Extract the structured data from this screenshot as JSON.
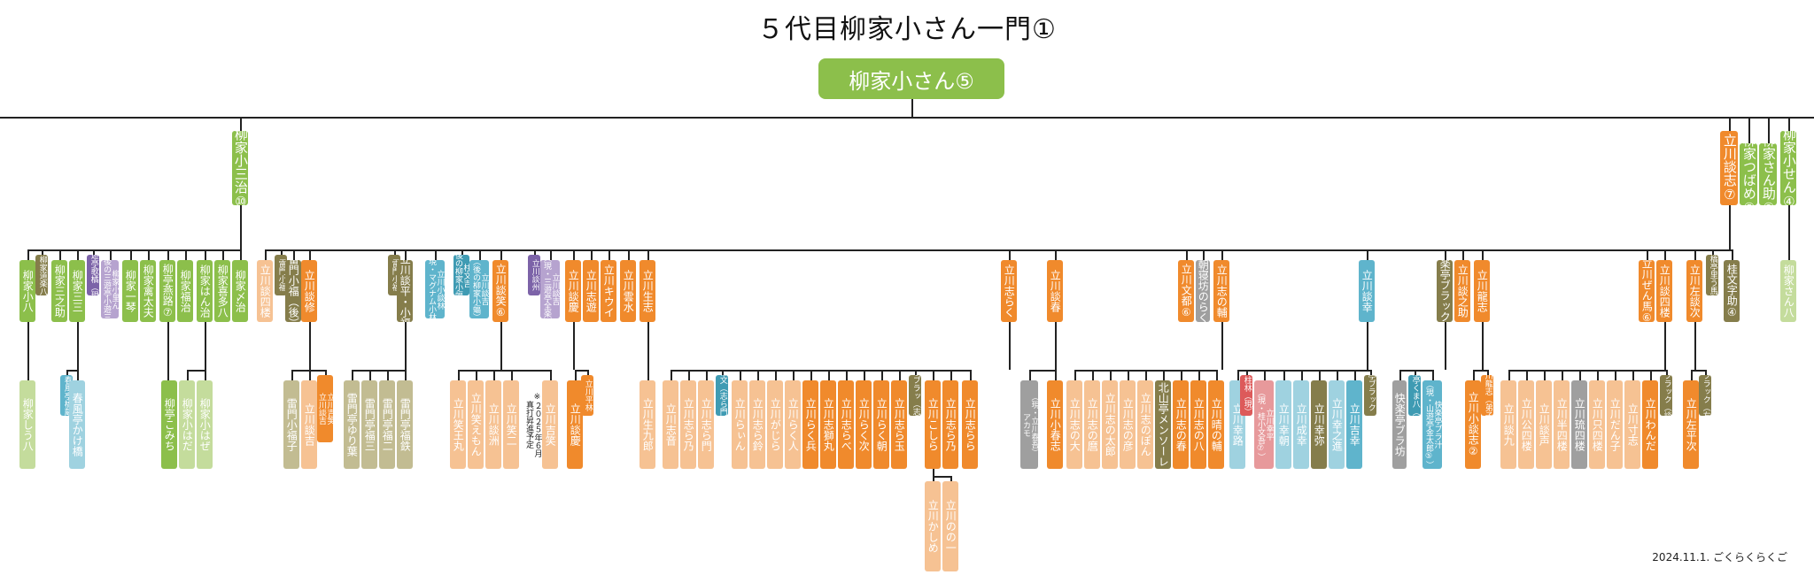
{
  "title": "５代目柳家小さん一門①",
  "footer": "2024.11.1. ごくらくらくご",
  "colors": {
    "green": "#8cbf4b",
    "lightgreen": "#c4dc9c",
    "olive": "#857d4b",
    "khaki": "#c2bc92",
    "purple": "#7c63a8",
    "lavender": "#b6a3cf",
    "teal": "#3f9bb3",
    "skyblue": "#5fb4cc",
    "paleblue": "#9fd2e0",
    "orange": "#f08a2c",
    "peach": "#f6c293",
    "gray": "#9f9f9f",
    "red": "#dd5a5a",
    "pink": "#e7999b",
    "line": "#222222"
  },
  "root": {
    "name": "柳家小さん⑤",
    "color": "green"
  },
  "nodes": [
    {
      "id": "kosanji",
      "name": "柳家小三治⑩",
      "color": "green"
    },
    {
      "id": "danshi",
      "name": "立川談志⑦",
      "color": "orange"
    },
    {
      "id": "tsubame",
      "name": "柳家つばめ⑤",
      "color": "green"
    },
    {
      "id": "sansuke",
      "name": "柳家さん助②",
      "color": "green"
    },
    {
      "id": "sansen",
      "name": "柳家小せん④",
      "color": "green"
    },
    {
      "id": "sanpachi",
      "name": "柳家さん八",
      "color": "lightgreen"
    },
    {
      "id": "tsub_c1",
      "name": "柳家小八",
      "color": "green"
    },
    {
      "id": "tsub_c2",
      "name": "柳家道楽八",
      "color": "olive"
    },
    {
      "id": "tsub_c3",
      "name": "柳家三之助",
      "color": "green"
    },
    {
      "id": "tsub_c4",
      "name": "柳家三三",
      "color": "green"
    },
    {
      "id": "tsub_c5",
      "name": "三遊亭歌橘（現）",
      "color": "purple"
    },
    {
      "id": "tsub_c6",
      "name": "柳家小里ん\n（後の三遊亭小遊三）",
      "color": "lavender"
    },
    {
      "id": "tsub_c7",
      "name": "柳家一琴",
      "color": "green"
    },
    {
      "id": "tsub_c8",
      "name": "柳家禽太夫",
      "color": "green"
    },
    {
      "id": "tsub_c9",
      "name": "柳亭燕路⑦",
      "color": "green"
    },
    {
      "id": "tsub_c10",
      "name": "柳家福治",
      "color": "green"
    },
    {
      "id": "tsub_c11",
      "name": "柳家はん治",
      "color": "green"
    },
    {
      "id": "tsub_c12",
      "name": "柳家喜多八",
      "color": "green"
    },
    {
      "id": "tsub_c13",
      "name": "柳家〆治",
      "color": "green"
    },
    {
      "id": "tsub_g1",
      "name": "柳家しう八",
      "color": "lightgreen"
    },
    {
      "id": "tsub_g2",
      "name": "春風亭橋蔵",
      "color": "skyblue"
    },
    {
      "id": "tsub_g3",
      "name": "春風亭かけ橋",
      "color": "paleblue"
    },
    {
      "id": "tsub_g4",
      "name": "柳亭こみち",
      "color": "green"
    },
    {
      "id": "tsub_g5",
      "name": "柳家小はだ",
      "color": "lightgreen"
    },
    {
      "id": "tsub_g6",
      "name": "柳家小はぜ",
      "color": "lightgreen"
    },
    {
      "id": "d1",
      "name": "立川談四楼",
      "color": "peach"
    },
    {
      "id": "d2",
      "name": "雷門小福",
      "color": "olive"
    },
    {
      "id": "d3",
      "name": "雷門小福（後）",
      "color": "olive"
    },
    {
      "id": "d4",
      "name": "立川談修",
      "color": "orange"
    },
    {
      "id": "d5",
      "name": "雷門小福",
      "color": "olive"
    },
    {
      "id": "d6",
      "name": "立川談平・小福",
      "color": "olive"
    },
    {
      "id": "d7",
      "name": "立川小談林\n（現・マグナム小林）",
      "color": "skyblue"
    },
    {
      "id": "d8",
      "name": "柱文吉\n（後の柳家小蝠）",
      "color": "teal"
    },
    {
      "id": "d9",
      "name": "立川談吉\n（後の柳家小蝠）",
      "color": "skyblue"
    },
    {
      "id": "d10",
      "name": "立川談笑⑥",
      "color": "orange"
    },
    {
      "id": "d11",
      "name": "立川談州",
      "color": "purple"
    },
    {
      "id": "d12",
      "name": "立川談吉\n（現・三遊亭全楽）",
      "color": "lavender"
    },
    {
      "id": "d13",
      "name": "立川談慶",
      "color": "orange"
    },
    {
      "id": "d14",
      "name": "立川志遊",
      "color": "orange"
    },
    {
      "id": "d15",
      "name": "立川キウイ",
      "color": "orange"
    },
    {
      "id": "d16",
      "name": "立川雲水",
      "color": "orange"
    },
    {
      "id": "d17",
      "name": "立川生志",
      "color": "orange"
    },
    {
      "id": "d18",
      "name": "立川志らく",
      "color": "orange"
    },
    {
      "id": "d19",
      "name": "立川談春",
      "color": "orange"
    },
    {
      "id": "d20",
      "name": "立川文都⑥",
      "color": "orange"
    },
    {
      "id": "d21",
      "name": "朝寝坊のらく",
      "color": "gray"
    },
    {
      "id": "d22",
      "name": "立川志の輔",
      "color": "orange"
    },
    {
      "id": "d23",
      "name": "立川談幸",
      "color": "skyblue"
    },
    {
      "id": "d24",
      "name": "快楽亭ブラック②",
      "color": "olive"
    },
    {
      "id": "d25",
      "name": "立川談之助",
      "color": "orange"
    },
    {
      "id": "d26",
      "name": "立川龍志",
      "color": "orange"
    },
    {
      "id": "d27",
      "name": "立川ぜん馬⑥",
      "color": "orange"
    },
    {
      "id": "d28",
      "name": "立川談四楼",
      "color": "orange"
    },
    {
      "id": "d29",
      "name": "立川左談次",
      "color": "orange"
    },
    {
      "id": "d30",
      "name": "土橋亭里う馬⑩",
      "color": "olive"
    },
    {
      "id": "d31",
      "name": "桂文字助④",
      "color": "olive"
    },
    {
      "id": "g_a1",
      "name": "雷門小福子",
      "color": "khaki"
    },
    {
      "id": "g_a2",
      "name": "立川談吉",
      "color": "peach"
    },
    {
      "id": "g_a3",
      "name": "立川吉笑\n立川談吉",
      "color": "orange"
    },
    {
      "id": "g_a4",
      "name": "雷門亭ゆり葉",
      "color": "khaki"
    },
    {
      "id": "g_a5",
      "name": "雷門亭福三",
      "color": "khaki"
    },
    {
      "id": "g_a6",
      "name": "雷門亭福二",
      "color": "khaki"
    },
    {
      "id": "g_a7",
      "name": "雷門亭福鉄",
      "color": "khaki"
    },
    {
      "id": "g_b1",
      "name": "立川笑王丸",
      "color": "peach"
    },
    {
      "id": "g_b2",
      "name": "立川笑えもん",
      "color": "peach"
    },
    {
      "id": "g_b3",
      "name": "立川談洲",
      "color": "peach"
    },
    {
      "id": "g_b4",
      "name": "立川笑二",
      "color": "peach"
    },
    {
      "id": "g_b5",
      "name": "立川吉笑",
      "color": "peach"
    },
    {
      "id": "g_b5note",
      "name": "※２０２５年６月\n真打昇進予定",
      "color": "white"
    },
    {
      "id": "g_c1",
      "name": "立川談慶",
      "color": "orange"
    },
    {
      "id": "g_c2",
      "name": "立川平林",
      "color": "orange"
    },
    {
      "id": "g_e1",
      "name": "立川生九郎",
      "color": "peach"
    },
    {
      "id": "g_f1",
      "name": "立川志音",
      "color": "peach"
    },
    {
      "id": "g_f2",
      "name": "立川志ら乃",
      "color": "peach"
    },
    {
      "id": "g_f3",
      "name": "立川志ら門",
      "color": "peach"
    },
    {
      "id": "g_f4",
      "name": "柱文（志ら門）",
      "color": "teal"
    },
    {
      "id": "g_f5",
      "name": "立川らぃん",
      "color": "peach"
    },
    {
      "id": "g_f6",
      "name": "立川志ら鈴",
      "color": "peach"
    },
    {
      "id": "g_f7",
      "name": "立川がじら",
      "color": "peach"
    },
    {
      "id": "g_f8",
      "name": "立川らく人",
      "color": "peach"
    },
    {
      "id": "g_f9",
      "name": "立川らく兵",
      "color": "orange"
    },
    {
      "id": "g_f10",
      "name": "立川志獅丸",
      "color": "orange"
    },
    {
      "id": "g_f11",
      "name": "立川志らべ",
      "color": "orange"
    },
    {
      "id": "g_f12",
      "name": "立川らく次",
      "color": "orange"
    },
    {
      "id": "g_f13",
      "name": "立川らく朝",
      "color": "orange"
    },
    {
      "id": "g_f14",
      "name": "立川志ら玉",
      "color": "orange"
    },
    {
      "id": "g_f15",
      "name": "快楽亭ブラッ（志ら乃）",
      "color": "olive"
    },
    {
      "id": "g_f16",
      "name": "立川こしら",
      "color": "orange"
    },
    {
      "id": "g_f17",
      "name": "立川志ら乃",
      "color": "orange"
    },
    {
      "id": "g_f18",
      "name": "立川志らら",
      "color": "orange"
    },
    {
      "id": "g_f19",
      "name": "立川かしめ",
      "color": "peach"
    },
    {
      "id": "g_f20",
      "name": "立川のの一",
      "color": "peach"
    },
    {
      "id": "g_g1",
      "name": "（現・立川春吾）\nアカモ",
      "color": "gray"
    },
    {
      "id": "g_g2",
      "name": "立川小春志",
      "color": "orange"
    },
    {
      "id": "g_h1",
      "name": "立川志の大",
      "color": "peach"
    },
    {
      "id": "g_h2",
      "name": "立川志の麿",
      "color": "peach"
    },
    {
      "id": "g_h3",
      "name": "立川志の太郎",
      "color": "peach"
    },
    {
      "id": "g_h4",
      "name": "立川志の彦",
      "color": "peach"
    },
    {
      "id": "g_h5",
      "name": "立川志のぽん",
      "color": "peach"
    },
    {
      "id": "g_h6",
      "name": "北山亭メンソーレ",
      "color": "olive"
    },
    {
      "id": "g_h7",
      "name": "立川志の春",
      "color": "orange"
    },
    {
      "id": "g_h8",
      "name": "立川志の八",
      "color": "orange"
    },
    {
      "id": "g_h9",
      "name": "立川晴の輔",
      "color": "orange"
    },
    {
      "id": "g_i1",
      "name": "立川幸路",
      "color": "paleblue"
    },
    {
      "id": "g_i2",
      "name": "柱林（現）",
      "color": "red"
    },
    {
      "id": "g_i3",
      "name": "立川幸平\n（現・桂小文吾⑦）",
      "color": "pink"
    },
    {
      "id": "g_i4",
      "name": "立川幸朝",
      "color": "paleblue"
    },
    {
      "id": "g_i5",
      "name": "立川成幸",
      "color": "paleblue"
    },
    {
      "id": "g_i6",
      "name": "立川幸弥",
      "color": "olive"
    },
    {
      "id": "g_i7",
      "name": "立川幸之進",
      "color": "paleblue"
    },
    {
      "id": "g_i8",
      "name": "立川吉幸",
      "color": "skyblue"
    },
    {
      "id": "g_i9",
      "name": "快楽亭ブラック（幸）",
      "color": "olive"
    },
    {
      "id": "g_j1",
      "name": "快楽亭ブラ坊",
      "color": "gray"
    },
    {
      "id": "g_j2",
      "name": "山遊亭くま八（現）",
      "color": "teal"
    },
    {
      "id": "g_j3",
      "name": "快楽亭ブラ汁\n（現・山遊亭金太郎⑤）",
      "color": "skyblue"
    },
    {
      "id": "g_k1",
      "name": "立川小談志②",
      "color": "orange"
    },
    {
      "id": "g_k2",
      "name": "立川龍志（弟子）",
      "color": "orange"
    },
    {
      "id": "g_l1",
      "name": "立川談九",
      "color": "peach"
    },
    {
      "id": "g_l2",
      "name": "立川公四楼",
      "color": "peach"
    },
    {
      "id": "g_l3",
      "name": "立川談声",
      "color": "peach"
    },
    {
      "id": "g_l4",
      "name": "立川半四楼",
      "color": "peach"
    },
    {
      "id": "g_l5",
      "name": "立川琉四楼",
      "color": "gray"
    },
    {
      "id": "g_l6",
      "name": "立川只四楼",
      "color": "peach"
    },
    {
      "id": "g_l7",
      "name": "立川だん子",
      "color": "peach"
    },
    {
      "id": "g_l8",
      "name": "立川寸志",
      "color": "peach"
    },
    {
      "id": "g_l9",
      "name": "立川わんだ",
      "color": "orange"
    },
    {
      "id": "g_l10",
      "name": "快楽亭ブラック（談四楼）",
      "color": "olive"
    },
    {
      "id": "g_m1",
      "name": "立川左平次",
      "color": "orange"
    },
    {
      "id": "g_m2",
      "name": "快楽亭ブラック（左談次）",
      "color": "olive"
    }
  ]
}
